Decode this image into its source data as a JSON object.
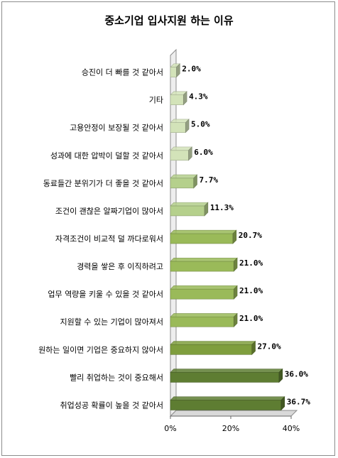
{
  "chart_data": {
    "type": "bar",
    "orientation": "horizontal",
    "title": "중소기업 입사지원 하는 이유",
    "categories": [
      "승진이 더 빠를 것 같아서",
      "기타",
      "고용안정이 보장될 것 같아서",
      "성과에 대한 압박이 덜할 것 같아서",
      "동료들간 분위기가 더 좋을 것 같아서",
      "조건이 괜찮은 알짜기업이 많아서",
      "자격조건이 비교적 덜 까다로워서",
      "경력을 쌓은 후 이직하려고",
      "업무 역량을 키울 수 있을 것 같아서",
      "지원할 수 있는 기업이 많아져서",
      "원하는 일이면 기업은 중요하지 않아서",
      "빨리 취업하는 것이 중요해서",
      "취업성공 확률이 높을 것 같아서"
    ],
    "values": [
      2.0,
      4.3,
      5.0,
      6.0,
      7.7,
      11.3,
      20.7,
      21.0,
      21.0,
      21.0,
      27.0,
      36.0,
      36.7
    ],
    "value_labels": [
      "2.0%",
      "4.3%",
      "5.0%",
      "6.0%",
      "7.7%",
      "11.3%",
      "20.7%",
      "21.0%",
      "21.0%",
      "21.0%",
      "27.0%",
      "36.0%",
      "36.7%"
    ],
    "xlim": [
      0,
      40
    ],
    "x_ticks": [
      "0%",
      "20%",
      "40%"
    ],
    "grid": false,
    "style": "3d",
    "colors": {
      "light": "#d3e3b9",
      "mid_light": "#b5d08c",
      "mid": "#9aba59",
      "mid_dark": "#7f9e3e",
      "dark": "#5e7d32"
    }
  }
}
